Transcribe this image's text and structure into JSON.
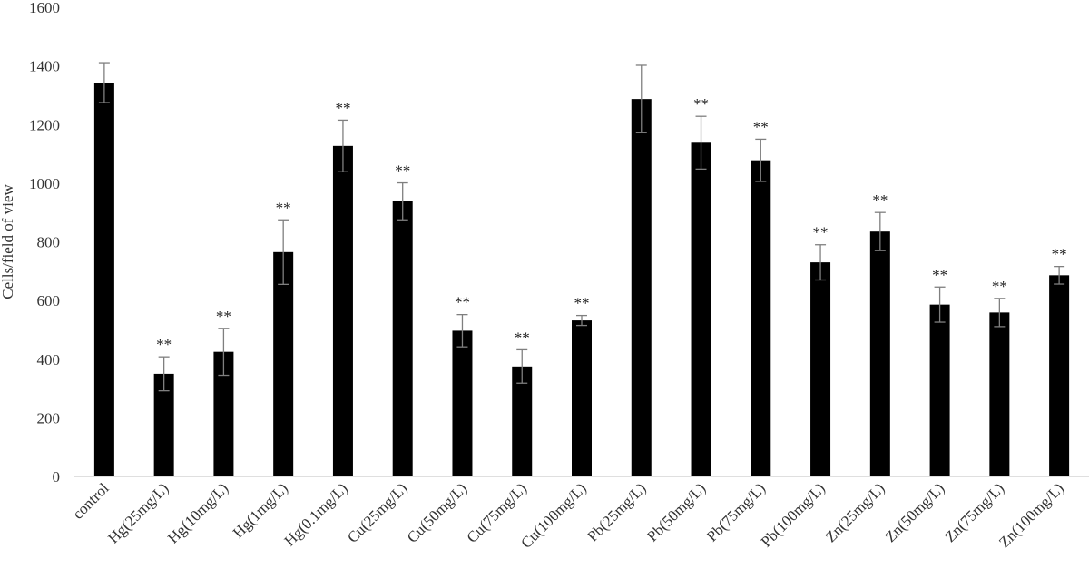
{
  "chart_data": {
    "type": "bar",
    "title": "",
    "xlabel": "",
    "ylabel": "Cells/field of view",
    "ylim": [
      0,
      1600
    ],
    "yticks": [
      0,
      200,
      400,
      600,
      800,
      1000,
      1200,
      1400,
      1600
    ],
    "grid": false,
    "categories": [
      "control",
      "Hg(25mg/L)",
      "Hg(10mg/L)",
      "Hg(1mg/L)",
      "Hg(0.1mg/L)",
      "Cu(25mg/L)",
      "Cu(50mg/L)",
      "Cu(75mg/L)",
      "Cu(100mg/L)",
      "Pb(25mg/L)",
      "Pb(50mg/L)",
      "Pb(75mg/L)",
      "Pb(100mg/L)",
      "Zn(25mg/L)",
      "Zn(50mg/L)",
      "Zn(75mg/L)",
      "Zn(100mg/L)"
    ],
    "values": [
      1343,
      350,
      425,
      765,
      1127,
      938,
      497,
      375,
      532,
      1287,
      1138,
      1078,
      730,
      835,
      586,
      559,
      686
    ],
    "errors": [
      68,
      58,
      80,
      110,
      88,
      63,
      55,
      57,
      17,
      115,
      90,
      72,
      60,
      65,
      60,
      48,
      30
    ],
    "significance": [
      "",
      "**",
      "**",
      "**",
      "**",
      "**",
      "**",
      "**",
      "**",
      "",
      "**",
      "**",
      "**",
      "**",
      "**",
      "**",
      "**"
    ],
    "bar_color": "#000000",
    "error_bar_color": "#7f7f7f"
  }
}
